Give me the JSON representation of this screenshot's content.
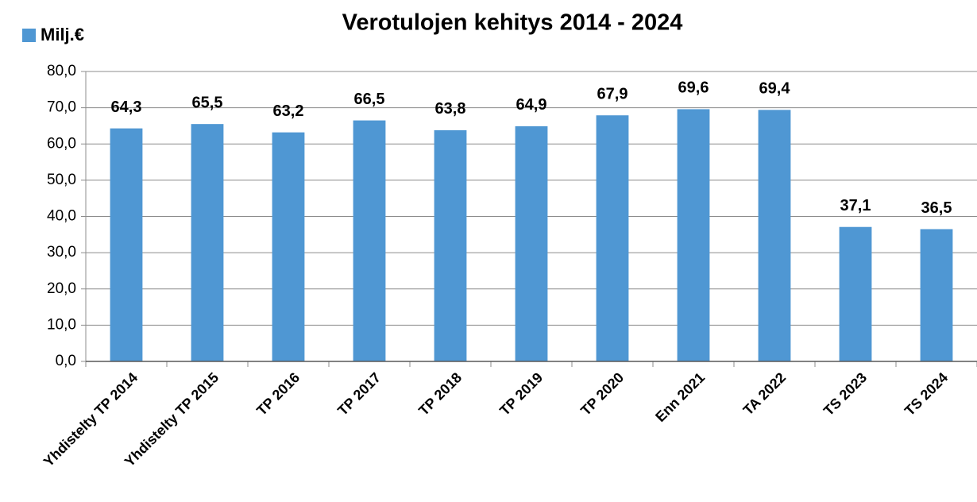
{
  "chart_data": {
    "type": "bar",
    "title": "Verotulojen kehitys 2014 - 2024",
    "legend": "Milj.€",
    "legend_position": "top-left",
    "categories": [
      "Yhdistelty TP 2014",
      "Yhdistelty TP 2015",
      "TP 2016",
      "TP 2017",
      "TP 2018",
      "TP 2019",
      "TP 2020",
      "Enn 2021",
      "TA 2022",
      "TS 2023",
      "TS 2024"
    ],
    "values": [
      64.3,
      65.5,
      63.2,
      66.5,
      63.8,
      64.9,
      67.9,
      69.6,
      69.4,
      37.1,
      36.5
    ],
    "value_labels": [
      "64,3",
      "65,5",
      "63,2",
      "66,5",
      "63,8",
      "64,9",
      "67,9",
      "69,6",
      "69,4",
      "37,1",
      "36,5"
    ],
    "color": "#4f97d3",
    "ylim": [
      0,
      80
    ],
    "yticks": [
      {
        "value": 0,
        "label": "0,0"
      },
      {
        "value": 10,
        "label": "10,0"
      },
      {
        "value": 20,
        "label": "20,0"
      },
      {
        "value": 30,
        "label": "30,0"
      },
      {
        "value": 40,
        "label": "40,0"
      },
      {
        "value": 50,
        "label": "50,0"
      },
      {
        "value": 60,
        "label": "60,0"
      },
      {
        "value": 70,
        "label": "70,0"
      },
      {
        "value": 80,
        "label": "80,0"
      }
    ],
    "grid": true
  }
}
